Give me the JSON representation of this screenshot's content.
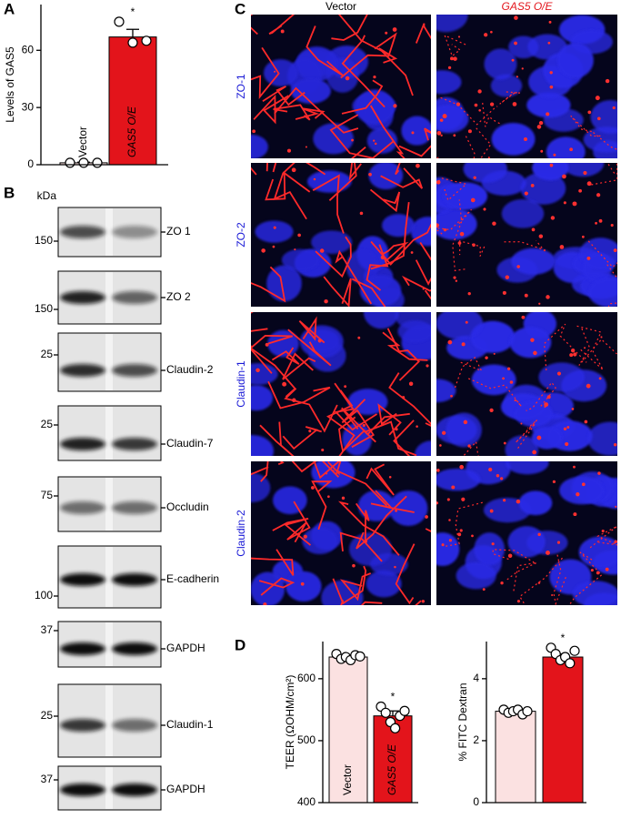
{
  "panel_labels": [
    "A",
    "B",
    "C",
    "D"
  ],
  "chart_data": [
    {
      "type": "bar",
      "ylabel": "Levels of GAS5",
      "categories": [
        "Vector",
        "GAS5 O/E"
      ],
      "values": [
        1,
        67
      ],
      "errors": [
        0.3,
        4
      ],
      "points": [
        [
          1,
          1,
          1
        ],
        [
          75,
          64,
          65
        ]
      ],
      "colors": [
        "#fbe1e1",
        "#e3141b"
      ],
      "annotations": [
        null,
        "*"
      ],
      "ylim": [
        0,
        84
      ],
      "yticks": [
        0,
        30,
        60
      ]
    },
    {
      "type": "bar",
      "ylabel": "TEER (ΩOHM/cm²)",
      "categories": [
        "Vector",
        "GAS5 O/E"
      ],
      "values": [
        635,
        540
      ],
      "errors": [
        3,
        8
      ],
      "points": [
        [
          640,
          632,
          635,
          630,
          638,
          636
        ],
        [
          555,
          545,
          530,
          520,
          540,
          548
        ]
      ],
      "colors": [
        "#fbe1e1",
        "#e3141b"
      ],
      "annotations": [
        null,
        "*"
      ],
      "ylim": [
        400,
        660
      ],
      "yticks": [
        400,
        500,
        600
      ]
    },
    {
      "type": "bar",
      "ylabel": "% FITC Dextran",
      "categories": [
        null,
        null
      ],
      "values": [
        2.95,
        4.7
      ],
      "errors": [
        0.03,
        0.1
      ],
      "points": [
        [
          3.0,
          2.9,
          2.95,
          3.0,
          2.85,
          2.95
        ],
        [
          5.0,
          4.8,
          4.6,
          4.7,
          4.5,
          4.9
        ]
      ],
      "colors": [
        "#fbe1e1",
        "#e3141b"
      ],
      "annotations": [
        null,
        "*"
      ],
      "ylim": [
        0,
        5.2
      ],
      "yticks": [
        0,
        2,
        4
      ]
    }
  ],
  "blots": {
    "unit": "kDa",
    "rows": [
      {
        "marker": 150,
        "label": "ZO 1"
      },
      {
        "marker": 150,
        "label": "ZO 2"
      },
      {
        "marker": 25,
        "label": "Claudin-2"
      },
      {
        "marker": 25,
        "label": "Claudin-7"
      },
      {
        "marker": 75,
        "label": "Occludin"
      },
      {
        "marker": 100,
        "label": "E-cadherin"
      },
      {
        "marker": 37,
        "label": "GAPDH"
      },
      {
        "marker": 25,
        "label": "Claudin-1"
      },
      {
        "marker": 37,
        "label": "GAPDH"
      }
    ]
  },
  "micrographs": {
    "columns": [
      "Vector",
      "GAS5 O/E"
    ],
    "rows": [
      "ZO-1",
      "ZO-2",
      "Claudin-1",
      "Claudin-2"
    ]
  }
}
